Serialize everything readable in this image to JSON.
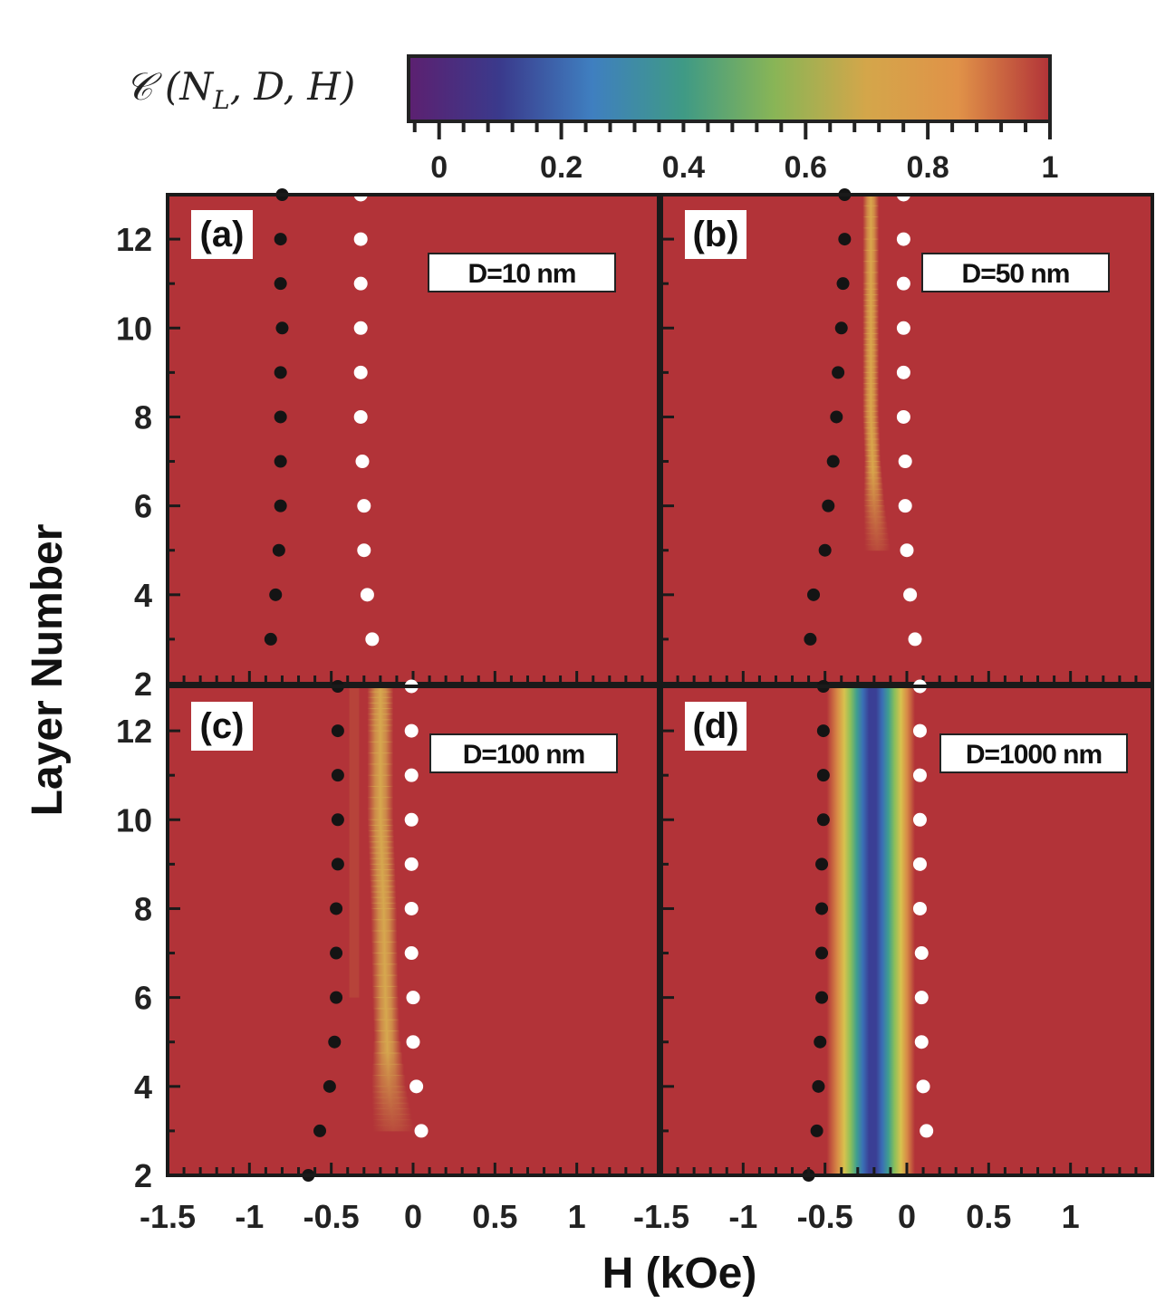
{
  "colorbar": {
    "title": "C (N_L, D, H)",
    "range": [
      -0.05,
      1.0
    ],
    "tick_labels": [
      "0",
      "0.2",
      "0.4",
      "0.6",
      "0.8",
      "1"
    ],
    "tick_values": [
      0,
      0.2,
      0.4,
      0.6,
      0.8,
      1.0
    ],
    "stops": [
      "#5c2070",
      "#3a3a8c",
      "#3f7fc0",
      "#3f9a85",
      "#89b556",
      "#d4a64a",
      "#e09248",
      "#b23338"
    ]
  },
  "axes": {
    "xlabel": "H (kOe)",
    "ylabel": "Layer Number",
    "xlim": [
      -1.5,
      1.5
    ],
    "ylim": [
      2,
      13
    ],
    "x_tick_labels_left": [
      "-1.5",
      "-1",
      "-0.5",
      "0",
      "0.5",
      "1"
    ],
    "x_tick_labels_right": [
      "-1.5",
      "-1",
      "-0.5",
      "0",
      "0.5",
      "1"
    ],
    "y_tick_labels_top": [
      "12",
      "10",
      "8",
      "6",
      "4",
      "2"
    ],
    "y_tick_labels_bottom": [
      "12",
      "10",
      "8",
      "6",
      "4",
      "2"
    ]
  },
  "chart_data": [
    {
      "type": "heatmap",
      "panel": "(a)",
      "annotation": "D=10 nm",
      "background": "#b23338",
      "band": null,
      "black_points": {
        "layers": [
          3,
          4,
          5,
          6,
          7,
          8,
          9,
          10,
          11,
          12,
          13
        ],
        "H": [
          -0.87,
          -0.84,
          -0.82,
          -0.81,
          -0.81,
          -0.81,
          -0.81,
          -0.8,
          -0.81,
          -0.81,
          -0.8
        ]
      },
      "white_points": {
        "layers": [
          3,
          4,
          5,
          6,
          7,
          8,
          9,
          10,
          11,
          12,
          13
        ],
        "H": [
          -0.25,
          -0.28,
          -0.3,
          -0.3,
          -0.31,
          -0.32,
          -0.32,
          -0.32,
          -0.32,
          -0.32,
          -0.32
        ]
      }
    },
    {
      "type": "heatmap",
      "panel": "(b)",
      "annotation": "D=50 nm",
      "background": "#b23338",
      "band": {
        "min_value": 0.78,
        "center_H": [
          -0.18,
          -0.2,
          -0.21,
          -0.22,
          -0.22,
          -0.22,
          -0.22,
          -0.22
        ],
        "layers": [
          5,
          6,
          7,
          8,
          9,
          10,
          11,
          13
        ],
        "half_width": 0.05
      },
      "black_points": {
        "layers": [
          3,
          4,
          5,
          6,
          7,
          8,
          9,
          10,
          11,
          12,
          13
        ],
        "H": [
          -0.59,
          -0.57,
          -0.5,
          -0.48,
          -0.45,
          -0.43,
          -0.42,
          -0.4,
          -0.39,
          -0.38,
          -0.38
        ]
      },
      "white_points": {
        "layers": [
          3,
          4,
          5,
          6,
          7,
          8,
          9,
          10,
          11,
          12,
          13
        ],
        "H": [
          0.05,
          0.02,
          0.0,
          -0.01,
          -0.01,
          -0.02,
          -0.02,
          -0.02,
          -0.02,
          -0.02,
          -0.02
        ]
      }
    },
    {
      "type": "heatmap",
      "panel": "(c)",
      "annotation": "D=100 nm",
      "background": "#b23338",
      "band": {
        "min_value": 0.75,
        "center_H": [
          -0.12,
          -0.15,
          -0.17,
          -0.18,
          -0.19,
          -0.2,
          -0.2,
          -0.2
        ],
        "layers": [
          3,
          4,
          6,
          8,
          9,
          10,
          12,
          13
        ],
        "half_width": 0.08
      },
      "black_points": {
        "layers": [
          2,
          3,
          4,
          5,
          6,
          7,
          8,
          9,
          10,
          11,
          12,
          13
        ],
        "H": [
          -0.64,
          -0.57,
          -0.51,
          -0.48,
          -0.47,
          -0.47,
          -0.47,
          -0.46,
          -0.46,
          -0.46,
          -0.46,
          -0.46
        ]
      },
      "white_points": {
        "layers": [
          3,
          4,
          5,
          6,
          7,
          8,
          9,
          10,
          11,
          12,
          13
        ],
        "H": [
          0.05,
          0.02,
          0.0,
          0.0,
          -0.01,
          -0.01,
          -0.01,
          -0.01,
          -0.01,
          -0.01,
          -0.01
        ]
      }
    },
    {
      "type": "heatmap",
      "panel": "(d)",
      "annotation": "D=1000 nm",
      "background": "#b23338",
      "band": {
        "min_value": 0.05,
        "center_H": [
          -0.22,
          -0.22,
          -0.22,
          -0.22,
          -0.22
        ],
        "layers": [
          2,
          4,
          8,
          12,
          13
        ],
        "half_width": 0.2
      },
      "black_points": {
        "layers": [
          2,
          3,
          4,
          5,
          6,
          7,
          8,
          9,
          10,
          11,
          12,
          13
        ],
        "H": [
          -0.6,
          -0.55,
          -0.54,
          -0.53,
          -0.52,
          -0.52,
          -0.52,
          -0.52,
          -0.51,
          -0.51,
          -0.51,
          -0.51
        ]
      },
      "white_points": {
        "layers": [
          3,
          4,
          5,
          6,
          7,
          8,
          9,
          10,
          11,
          12,
          13
        ],
        "H": [
          0.12,
          0.1,
          0.09,
          0.09,
          0.09,
          0.08,
          0.08,
          0.08,
          0.08,
          0.08,
          0.08
        ]
      }
    }
  ]
}
